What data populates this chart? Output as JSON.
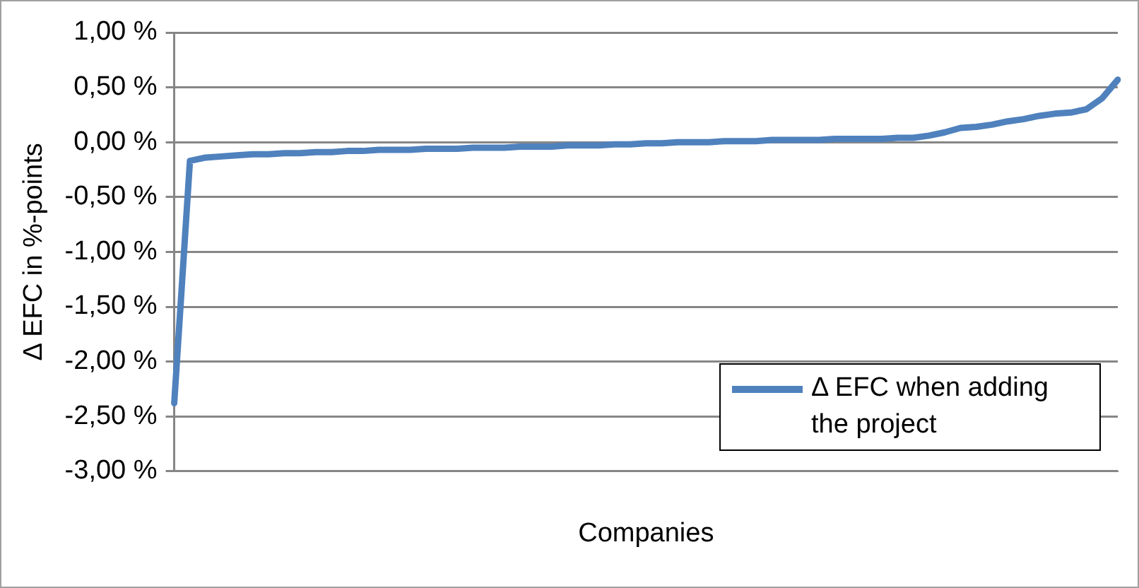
{
  "chart_data": {
    "type": "line",
    "xlabel": "Companies",
    "ylabel": "Δ EFC in %-points",
    "categories": [
      null,
      null,
      null,
      null,
      null,
      null,
      null,
      null,
      null,
      null,
      null,
      null,
      null,
      null,
      null,
      null,
      null,
      null,
      null,
      null,
      null,
      null,
      null,
      null,
      null,
      null,
      null,
      null,
      null,
      null,
      null,
      null,
      null,
      null,
      null,
      null,
      null,
      null,
      null,
      null,
      null,
      null,
      null,
      null,
      null,
      null,
      null,
      null,
      null,
      null,
      null,
      null,
      null,
      null,
      null,
      null,
      null,
      null,
      null,
      null,
      null
    ],
    "series": [
      {
        "name": "Δ EFC when adding the project",
        "color": "#4f81bd",
        "values": [
          -2.38,
          -0.17,
          -0.14,
          -0.13,
          -0.12,
          -0.11,
          -0.11,
          -0.1,
          -0.1,
          -0.09,
          -0.09,
          -0.08,
          -0.08,
          -0.07,
          -0.07,
          -0.07,
          -0.06,
          -0.06,
          -0.06,
          -0.05,
          -0.05,
          -0.05,
          -0.04,
          -0.04,
          -0.04,
          -0.03,
          -0.03,
          -0.03,
          -0.02,
          -0.02,
          -0.01,
          -0.01,
          0.0,
          0.0,
          0.0,
          0.01,
          0.01,
          0.01,
          0.02,
          0.02,
          0.02,
          0.02,
          0.03,
          0.03,
          0.03,
          0.03,
          0.04,
          0.04,
          0.06,
          0.09,
          0.13,
          0.14,
          0.16,
          0.19,
          0.21,
          0.24,
          0.26,
          0.27,
          0.3,
          0.4,
          0.57
        ]
      }
    ],
    "ylim": [
      -3,
      1
    ],
    "yticks": [
      {
        "value": -3,
        "label": "-3,00 %"
      },
      {
        "value": -2.5,
        "label": "-2,50 %"
      },
      {
        "value": -2,
        "label": "-2,00 %"
      },
      {
        "value": -1.5,
        "label": "-1,50 %"
      },
      {
        "value": -1,
        "label": "-1,00 %"
      },
      {
        "value": -0.5,
        "label": "-0,50 %"
      },
      {
        "value": 0,
        "label": "0,00 %"
      },
      {
        "value": 0.5,
        "label": "0,50 %"
      },
      {
        "value": 1,
        "label": "1,00 %"
      }
    ],
    "grid": "y",
    "legend": "bottom right",
    "marker": "none",
    "line_style": "solid"
  }
}
